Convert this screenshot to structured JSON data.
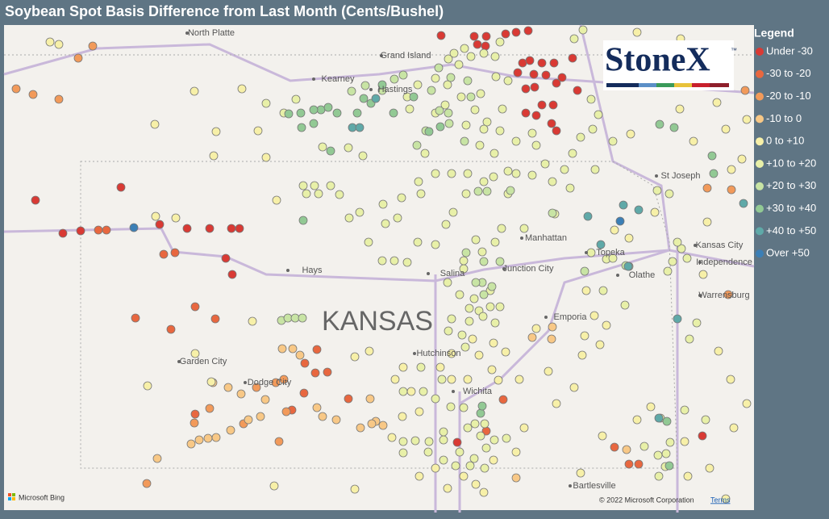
{
  "header": {
    "title": "Soybean Spot Basis Difference from Last Month (Cents/Bushel)"
  },
  "legend": {
    "title": "Legend",
    "items": [
      {
        "label": "Under -30",
        "color": "#d93a34"
      },
      {
        "label": "-30 to -20",
        "color": "#e8673f"
      },
      {
        "label": "-20 to -10",
        "color": "#f29a5a"
      },
      {
        "label": "-10 to 0",
        "color": "#f8c886"
      },
      {
        "label": "0 to +10",
        "color": "#f7f0a8"
      },
      {
        "label": "+10 to +20",
        "color": "#e8f0a8"
      },
      {
        "label": "+20 to +30",
        "color": "#c8e4a4"
      },
      {
        "label": "+30 to +40",
        "color": "#92c994"
      },
      {
        "label": "+40 to +50",
        "color": "#5fa9a8"
      },
      {
        "label": "Over +50",
        "color": "#3b7fb6"
      }
    ]
  },
  "logo": {
    "text": "StoneX",
    "mark": "™"
  },
  "places": [
    "North Platte",
    "Grand Island",
    "Kearney",
    "Hastings",
    "St Joseph",
    "Manhattan",
    "Topeka",
    "Kansas City",
    "Independence",
    "Hays",
    "Salina",
    "Junction City",
    "Olathe",
    "Warrensburg",
    "Emporia",
    "Garden City",
    "Dodge City",
    "Hutchinson",
    "Wichita",
    "Bartlesville"
  ],
  "state_label": "KANSAS",
  "footer": {
    "provider": "Microsoft Bing",
    "copyright": "© 2022 Microsoft Corporation",
    "terms": "Terms"
  }
}
